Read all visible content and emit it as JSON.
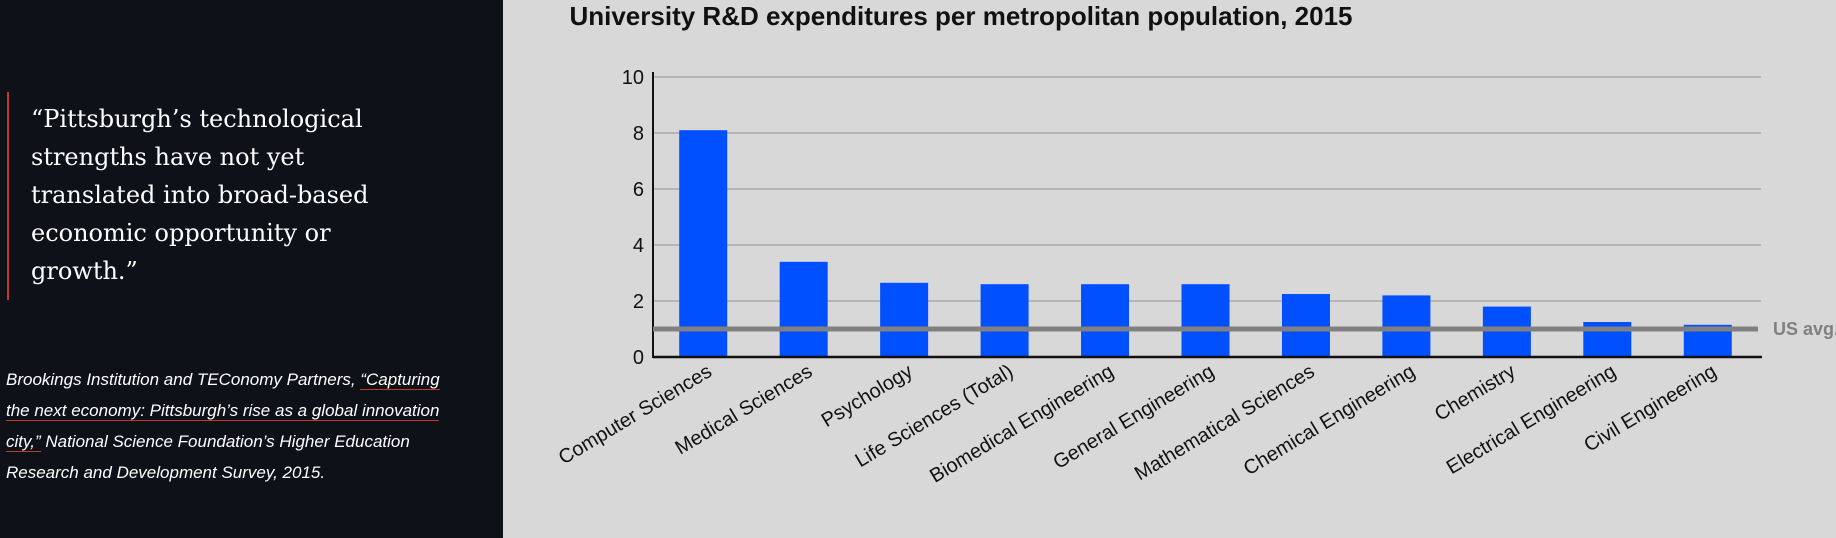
{
  "quote": {
    "text": "“Pittsburgh’s technological strengths have not yet translated into broad-based economic opportunity or growth.”"
  },
  "source": {
    "prefix": "Brookings Institution and TEConomy Partners, ",
    "link_text": "“Capturing the next economy: Pittsburgh’s rise as a global innovation city,”",
    "suffix": " National Science Foundation’s Higher Education Research and Development Survey, 2015."
  },
  "colors": {
    "left_bg": "#0e1117",
    "chart_bg": "#d8d8d8",
    "bar": "#0050ff",
    "avg_line": "#808080",
    "accent": "#c0392b"
  },
  "chart_data": {
    "type": "bar",
    "title": "University R&D expenditures per metropolitan population, 2015",
    "categories": [
      "Computer Sciences",
      "Medical Sciences",
      "Psychology",
      "Life Sciences (Total)",
      "Biomedical Engineering",
      "General Engineering",
      "Mathematical Sciences",
      "Chemical Engineering",
      "Chemistry",
      "Electrical Engineering",
      "Civil Engineering"
    ],
    "values": [
      8.1,
      3.4,
      2.65,
      2.6,
      2.6,
      2.6,
      2.25,
      2.2,
      1.8,
      1.25,
      1.15
    ],
    "ylim": [
      0,
      10
    ],
    "yticks": [
      0,
      2,
      4,
      6,
      8,
      10
    ],
    "grid": true,
    "reference_line": {
      "value": 1,
      "label": "US avg."
    }
  }
}
